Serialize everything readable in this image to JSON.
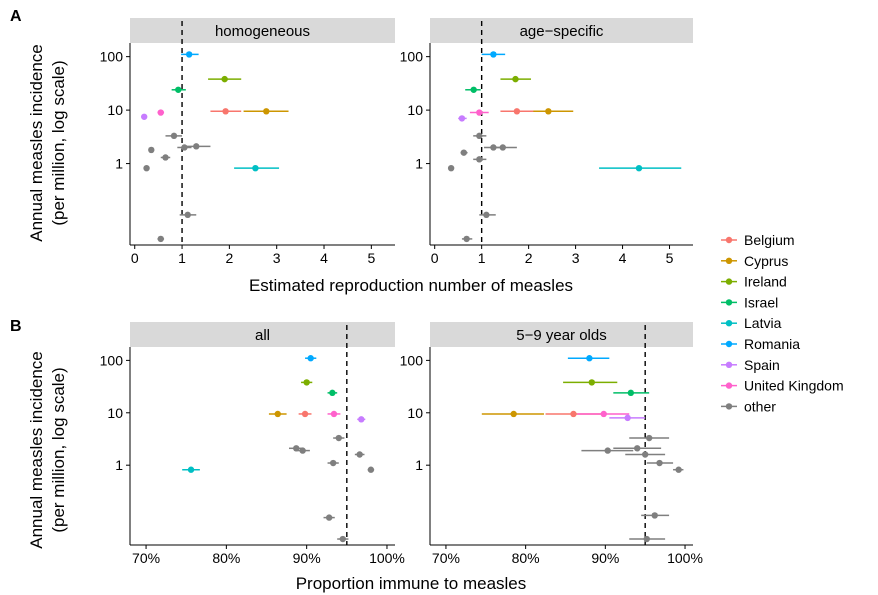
{
  "panels": [
    {
      "label": "A",
      "xlabel": "Estimated reproduction number of measles",
      "ylabel": [
        "Annual measles incidence",
        "(per million, log scale)"
      ]
    },
    {
      "label": "B",
      "xlabel": "Proportion immune to measles",
      "ylabel": [
        "Annual measles incidence",
        "(per million, log scale)"
      ]
    }
  ],
  "legend": {
    "placement": "right",
    "entries": [
      {
        "name": "Belgium",
        "color": "#F8766D"
      },
      {
        "name": "Cyprus",
        "color": "#CD9600"
      },
      {
        "name": "Ireland",
        "color": "#7CAE00"
      },
      {
        "name": "Israel",
        "color": "#00BE67"
      },
      {
        "name": "Latvia",
        "color": "#00BFC4"
      },
      {
        "name": "Romania",
        "color": "#00A9FF"
      },
      {
        "name": "Spain",
        "color": "#C77CFF"
      },
      {
        "name": "United Kingdom",
        "color": "#FF61CC"
      },
      {
        "name": "other",
        "color": "#7F7F7F"
      }
    ]
  },
  "chart_data": [
    {
      "type": "scatter",
      "title": "homogeneous",
      "xlabel": "Estimated reproduction number of measles",
      "ylabel": "Annual measles incidence (per million, log scale)",
      "xlim": [
        -0.1,
        5.5
      ],
      "xticks": [
        0,
        1,
        2,
        3,
        4,
        5
      ],
      "xtick_labels": [
        "0",
        "1",
        "2",
        "3",
        "4",
        "5"
      ],
      "ylim": [
        0.03,
        180
      ],
      "yscale": "log",
      "yticks": [
        1,
        10,
        100
      ],
      "ytick_labels": [
        "1",
        "10",
        "100"
      ],
      "reference_x": 1,
      "grid": false,
      "points": [
        {
          "name": "Romania",
          "x": 1.15,
          "lo": 0.98,
          "hi": 1.35,
          "y": 110
        },
        {
          "name": "Ireland",
          "x": 1.9,
          "lo": 1.55,
          "hi": 2.25,
          "y": 38
        },
        {
          "name": "Israel",
          "x": 0.92,
          "lo": 0.78,
          "hi": 1.08,
          "y": 24
        },
        {
          "name": "Belgium",
          "x": 1.92,
          "lo": 1.6,
          "hi": 2.25,
          "y": 9.5
        },
        {
          "name": "Cyprus",
          "x": 2.78,
          "lo": 2.3,
          "hi": 3.25,
          "y": 9.5
        },
        {
          "name": "United Kingdom",
          "x": 0.55,
          "lo": 0.48,
          "hi": 0.62,
          "y": 9
        },
        {
          "name": "Spain",
          "x": 0.2,
          "lo": 0.15,
          "hi": 0.25,
          "y": 7.5
        },
        {
          "name": "other",
          "x": 0.83,
          "lo": 0.65,
          "hi": 1.0,
          "y": 3.3
        },
        {
          "name": "other",
          "x": 1.3,
          "lo": 1.05,
          "hi": 1.6,
          "y": 2.1
        },
        {
          "name": "other",
          "x": 1.05,
          "lo": 0.9,
          "hi": 1.2,
          "y": 2.0
        },
        {
          "name": "other",
          "x": 0.35,
          "lo": 0.3,
          "hi": 0.4,
          "y": 1.8
        },
        {
          "name": "other",
          "x": 0.65,
          "lo": 0.55,
          "hi": 0.75,
          "y": 1.3
        },
        {
          "name": "Latvia",
          "x": 2.55,
          "lo": 2.1,
          "hi": 3.05,
          "y": 0.82
        },
        {
          "name": "other",
          "x": 0.25,
          "lo": 0.2,
          "hi": 0.3,
          "y": 0.82
        },
        {
          "name": "other",
          "x": 1.12,
          "lo": 0.95,
          "hi": 1.3,
          "y": 0.11
        },
        {
          "name": "other",
          "x": 0.55,
          "lo": 0.48,
          "hi": 0.62,
          "y": 0.039
        }
      ]
    },
    {
      "type": "scatter",
      "title": "age−specific",
      "xlabel": "Estimated reproduction number of measles",
      "ylabel": "Annual measles incidence (per million, log scale)",
      "xlim": [
        -0.1,
        5.5
      ],
      "xticks": [
        0,
        1,
        2,
        3,
        4,
        5
      ],
      "xtick_labels": [
        "0",
        "1",
        "2",
        "3",
        "4",
        "5"
      ],
      "ylim": [
        0.03,
        180
      ],
      "yscale": "log",
      "yticks": [
        1,
        10,
        100
      ],
      "ytick_labels": [
        "1",
        "10",
        "100"
      ],
      "reference_x": 1,
      "grid": false,
      "points": [
        {
          "name": "Romania",
          "x": 1.25,
          "lo": 1.0,
          "hi": 1.5,
          "y": 110
        },
        {
          "name": "Ireland",
          "x": 1.72,
          "lo": 1.4,
          "hi": 2.05,
          "y": 38
        },
        {
          "name": "Israel",
          "x": 0.83,
          "lo": 0.65,
          "hi": 0.98,
          "y": 24
        },
        {
          "name": "Cyprus",
          "x": 2.42,
          "lo": 1.95,
          "hi": 2.95,
          "y": 9.5
        },
        {
          "name": "Belgium",
          "x": 1.75,
          "lo": 1.4,
          "hi": 2.1,
          "y": 9.5
        },
        {
          "name": "United Kingdom",
          "x": 0.95,
          "lo": 0.75,
          "hi": 1.15,
          "y": 9
        },
        {
          "name": "Spain",
          "x": 0.58,
          "lo": 0.5,
          "hi": 0.68,
          "y": 7
        },
        {
          "name": "other",
          "x": 0.95,
          "lo": 0.82,
          "hi": 1.1,
          "y": 3.3
        },
        {
          "name": "other",
          "x": 1.45,
          "lo": 1.2,
          "hi": 1.75,
          "y": 2.0
        },
        {
          "name": "other",
          "x": 1.25,
          "lo": 1.05,
          "hi": 1.45,
          "y": 2.0
        },
        {
          "name": "other",
          "x": 0.62,
          "lo": 0.55,
          "hi": 0.7,
          "y": 1.6
        },
        {
          "name": "other",
          "x": 0.95,
          "lo": 0.82,
          "hi": 1.1,
          "y": 1.2
        },
        {
          "name": "Latvia",
          "x": 4.35,
          "lo": 3.5,
          "hi": 5.25,
          "y": 0.82
        },
        {
          "name": "other",
          "x": 0.35,
          "lo": 0.3,
          "hi": 0.4,
          "y": 0.82
        },
        {
          "name": "other",
          "x": 1.1,
          "lo": 0.95,
          "hi": 1.3,
          "y": 0.11
        },
        {
          "name": "other",
          "x": 0.68,
          "lo": 0.58,
          "hi": 0.8,
          "y": 0.039
        }
      ]
    },
    {
      "type": "scatter",
      "title": "all",
      "xlabel": "Proportion immune to measles",
      "ylabel": "Annual measles incidence (per million, log scale)",
      "xlim": [
        0.68,
        1.01
      ],
      "xticks": [
        0.7,
        0.8,
        0.9,
        1.0
      ],
      "xtick_labels": [
        "70%",
        "80%",
        "90%",
        "100%"
      ],
      "ylim": [
        0.03,
        180
      ],
      "yscale": "log",
      "yticks": [
        1,
        10,
        100
      ],
      "ytick_labels": [
        "1",
        "10",
        "100"
      ],
      "reference_x": 0.95,
      "grid": false,
      "points": [
        {
          "name": "Romania",
          "x": 0.905,
          "lo": 0.898,
          "hi": 0.912,
          "y": 110
        },
        {
          "name": "Ireland",
          "x": 0.9,
          "lo": 0.893,
          "hi": 0.907,
          "y": 38
        },
        {
          "name": "Israel",
          "x": 0.932,
          "lo": 0.926,
          "hi": 0.938,
          "y": 24
        },
        {
          "name": "Cyprus",
          "x": 0.864,
          "lo": 0.853,
          "hi": 0.875,
          "y": 9.5
        },
        {
          "name": "Belgium",
          "x": 0.898,
          "lo": 0.89,
          "hi": 0.906,
          "y": 9.5
        },
        {
          "name": "United Kingdom",
          "x": 0.934,
          "lo": 0.926,
          "hi": 0.942,
          "y": 9.5
        },
        {
          "name": "Spain",
          "x": 0.968,
          "lo": 0.963,
          "hi": 0.973,
          "y": 7.5
        },
        {
          "name": "other",
          "x": 0.94,
          "lo": 0.933,
          "hi": 0.947,
          "y": 3.3
        },
        {
          "name": "other",
          "x": 0.887,
          "lo": 0.878,
          "hi": 0.896,
          "y": 2.1
        },
        {
          "name": "other",
          "x": 0.895,
          "lo": 0.886,
          "hi": 0.904,
          "y": 1.9
        },
        {
          "name": "other",
          "x": 0.966,
          "lo": 0.96,
          "hi": 0.972,
          "y": 1.6
        },
        {
          "name": "other",
          "x": 0.933,
          "lo": 0.926,
          "hi": 0.94,
          "y": 1.1
        },
        {
          "name": "Latvia",
          "x": 0.756,
          "lo": 0.745,
          "hi": 0.767,
          "y": 0.82
        },
        {
          "name": "other",
          "x": 0.98,
          "lo": 0.976,
          "hi": 0.984,
          "y": 0.82
        },
        {
          "name": "other",
          "x": 0.928,
          "lo": 0.921,
          "hi": 0.935,
          "y": 0.1
        },
        {
          "name": "other",
          "x": 0.945,
          "lo": 0.938,
          "hi": 0.952,
          "y": 0.039
        }
      ]
    },
    {
      "type": "scatter",
      "title": "5−9 year olds",
      "xlabel": "Proportion immune to measles",
      "ylabel": "Annual measles incidence (per million, log scale)",
      "xlim": [
        0.68,
        1.01
      ],
      "xticks": [
        0.7,
        0.8,
        0.9,
        1.0
      ],
      "xtick_labels": [
        "70%",
        "80%",
        "90%",
        "100%"
      ],
      "ylim": [
        0.03,
        180
      ],
      "yscale": "log",
      "yticks": [
        1,
        10,
        100
      ],
      "ytick_labels": [
        "1",
        "10",
        "100"
      ],
      "reference_x": 0.95,
      "grid": false,
      "points": [
        {
          "name": "Romania",
          "x": 0.88,
          "lo": 0.853,
          "hi": 0.905,
          "y": 110
        },
        {
          "name": "Ireland",
          "x": 0.883,
          "lo": 0.847,
          "hi": 0.915,
          "y": 38
        },
        {
          "name": "Israel",
          "x": 0.932,
          "lo": 0.91,
          "hi": 0.955,
          "y": 24
        },
        {
          "name": "Cyprus",
          "x": 0.785,
          "lo": 0.745,
          "hi": 0.823,
          "y": 9.5
        },
        {
          "name": "Belgium",
          "x": 0.86,
          "lo": 0.825,
          "hi": 0.895,
          "y": 9.5
        },
        {
          "name": "United Kingdom",
          "x": 0.898,
          "lo": 0.865,
          "hi": 0.93,
          "y": 9.5
        },
        {
          "name": "Spain",
          "x": 0.928,
          "lo": 0.905,
          "hi": 0.95,
          "y": 8
        },
        {
          "name": "other",
          "x": 0.955,
          "lo": 0.93,
          "hi": 0.98,
          "y": 3.3
        },
        {
          "name": "other",
          "x": 0.94,
          "lo": 0.91,
          "hi": 0.97,
          "y": 2.1
        },
        {
          "name": "other",
          "x": 0.903,
          "lo": 0.87,
          "hi": 0.935,
          "y": 1.9
        },
        {
          "name": "other",
          "x": 0.95,
          "lo": 0.925,
          "hi": 0.975,
          "y": 1.6
        },
        {
          "name": "other",
          "x": 0.968,
          "lo": 0.952,
          "hi": 0.985,
          "y": 1.1
        },
        {
          "name": "other",
          "x": 0.992,
          "lo": 0.985,
          "hi": 0.998,
          "y": 0.82
        },
        {
          "name": "other",
          "x": 0.962,
          "lo": 0.945,
          "hi": 0.98,
          "y": 0.11
        },
        {
          "name": "other",
          "x": 0.952,
          "lo": 0.93,
          "hi": 0.975,
          "y": 0.039
        }
      ]
    }
  ]
}
